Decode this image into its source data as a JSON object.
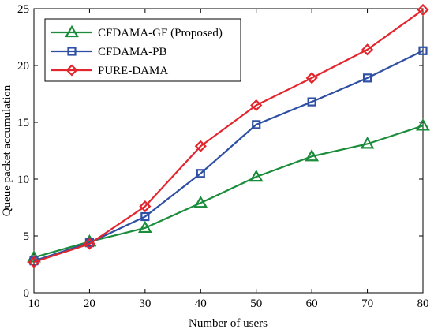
{
  "chart_data": {
    "type": "line",
    "title": "",
    "xlabel": "Number of users",
    "ylabel": "Queue packet accumulation",
    "xlim": [
      10,
      80
    ],
    "ylim": [
      0,
      25
    ],
    "x": [
      10,
      20,
      30,
      40,
      50,
      60,
      70,
      80
    ],
    "x_ticks": [
      "10",
      "20",
      "30",
      "40",
      "50",
      "60",
      "70",
      "80"
    ],
    "y_ticks": [
      "0",
      "5",
      "10",
      "15",
      "20",
      "25"
    ],
    "grid": false,
    "legend_position": "top-left",
    "series": [
      {
        "name": "CFDAMA-GF (Proposed)",
        "color": "#1a8c3a",
        "marker": "triangle",
        "values": [
          3.1,
          4.5,
          5.7,
          7.9,
          10.2,
          12.0,
          13.1,
          14.7
        ]
      },
      {
        "name": "CFDAMA-PB",
        "color": "#2e4fa3",
        "marker": "square",
        "values": [
          2.8,
          4.4,
          6.7,
          10.5,
          14.8,
          16.8,
          18.9,
          21.3
        ]
      },
      {
        "name": "PURE-DAMA",
        "color": "#e3262d",
        "marker": "diamond",
        "values": [
          2.7,
          4.3,
          7.6,
          12.9,
          16.5,
          18.9,
          21.4,
          24.9
        ]
      }
    ]
  }
}
